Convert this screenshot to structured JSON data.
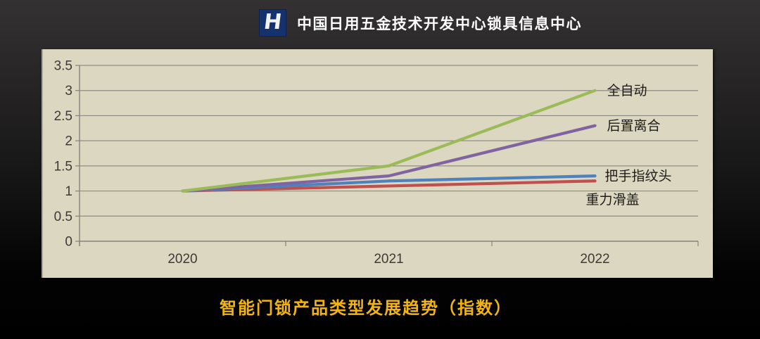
{
  "header": {
    "logo_letter": "H",
    "title": "中国日用五金技术开发中心锁具信息中心"
  },
  "caption": "智能门锁产品类型发展趋势（指数）",
  "colors": {
    "background_top": "#333132",
    "background_bottom": "#000000",
    "panel_bg": "#dcd7c1",
    "gridline": "#8e8d84",
    "axis": "#84837b",
    "axis_text": "#3b3a36",
    "series_label_text": "#1d1c19",
    "caption_gold": "#f2b410",
    "logo_navy": "#15316e",
    "green": "#9bbb59",
    "purple": "#8064a2",
    "blue": "#4f81bd",
    "red": "#c0504d"
  },
  "chart_data": {
    "type": "line",
    "title": "智能门锁产品类型发展趋势（指数）",
    "xlabel": "",
    "ylabel": "",
    "categories": [
      "2020",
      "2021",
      "2022"
    ],
    "series": [
      {
        "name": "全自动",
        "color": "#9bbb59",
        "values": [
          1,
          1.5,
          3.0
        ],
        "label_dx": 17,
        "label_dy": 0
      },
      {
        "name": "后置离合",
        "color": "#8064a2",
        "values": [
          1,
          1.3,
          2.3
        ],
        "label_dx": 17,
        "label_dy": 0
      },
      {
        "name": "把手指纹头",
        "color": "#4f81bd",
        "values": [
          1,
          1.2,
          1.3
        ],
        "label_dx": 14,
        "label_dy": 0
      },
      {
        "name": "重力滑盖",
        "color": "#c0504d",
        "values": [
          1,
          1.1,
          1.2
        ],
        "label_dx": -13,
        "label_dy": 26
      }
    ],
    "ylim": [
      0,
      3.5
    ],
    "ytick_step": 0.5,
    "yticks": [
      "3.5",
      "3",
      "2.5",
      "2",
      "1.5",
      "1",
      "0.5",
      "0"
    ],
    "grid": true,
    "legend_position": "labels-at-line-ends-inside-plot"
  }
}
